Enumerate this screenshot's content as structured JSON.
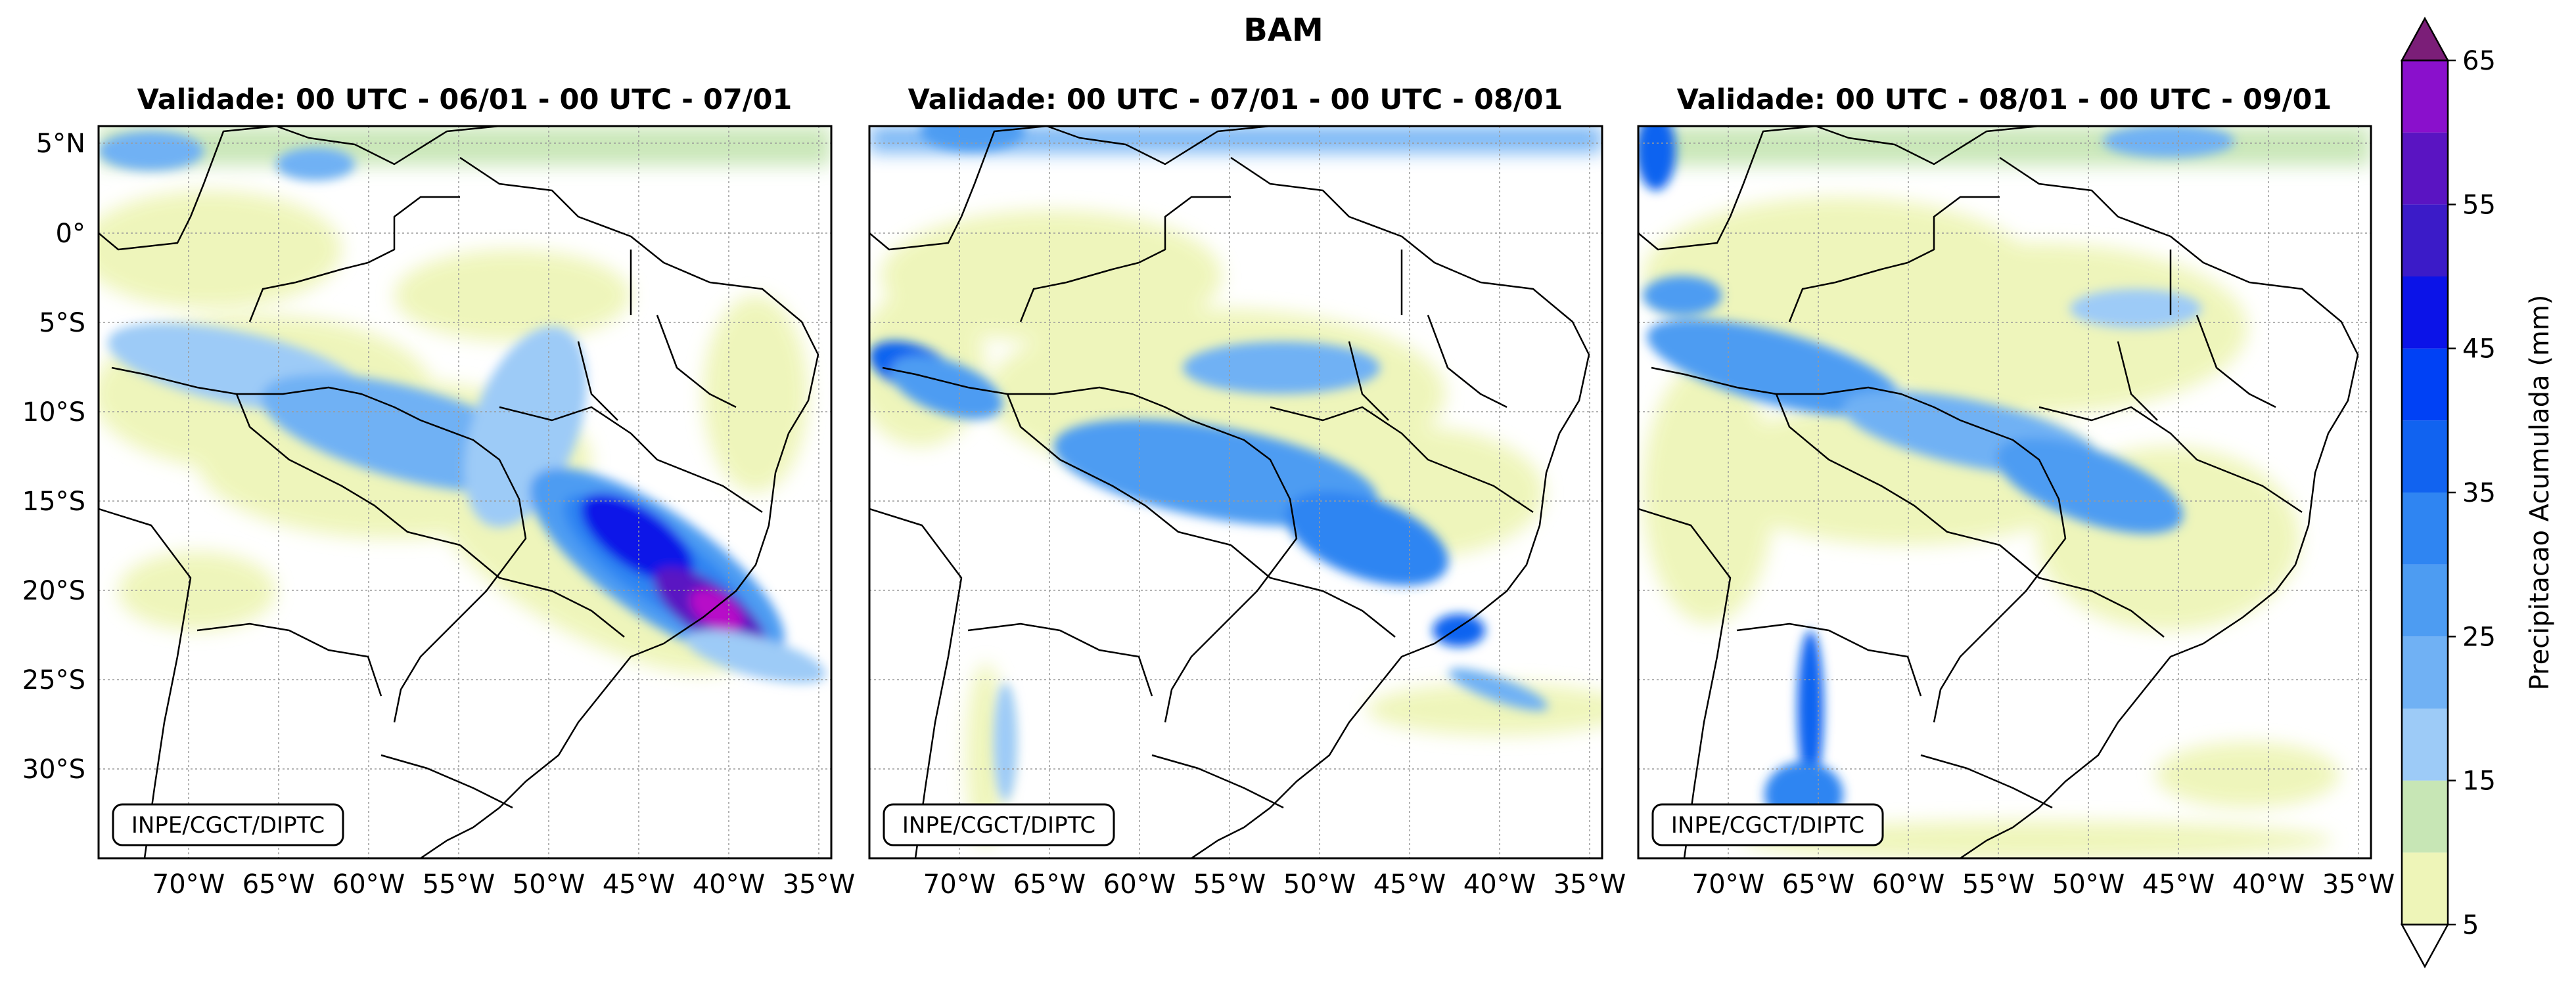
{
  "figure": {
    "suptitle": "BAM",
    "panels": [
      {
        "id": "p1",
        "title": "Validade: 00 UTC - 06/01 - 00 UTC - 07/01",
        "credit": "INPE/CGCT/DIPTC"
      },
      {
        "id": "p2",
        "title": "Validade: 00 UTC - 07/01 - 00 UTC - 08/01",
        "credit": "INPE/CGCT/DIPTC"
      },
      {
        "id": "p3",
        "title": "Validade: 00 UTC - 08/01 - 00 UTC - 09/01",
        "credit": "INPE/CGCT/DIPTC"
      }
    ],
    "lon_ticks": [
      "70°W",
      "65°W",
      "60°W",
      "55°W",
      "50°W",
      "45°W",
      "40°W",
      "35°W"
    ],
    "lat_ticks": [
      "5°N",
      "0°",
      "5°S",
      "10°S",
      "15°S",
      "20°S",
      "25°S",
      "30°S"
    ]
  },
  "colorbar": {
    "label": "Precipitacao Acumulada (mm)",
    "tick_labels": [
      "5",
      "15",
      "25",
      "35",
      "45",
      "55",
      "65"
    ],
    "levels": [
      5,
      10,
      15,
      20,
      25,
      30,
      35,
      40,
      45,
      50,
      55,
      60,
      65
    ],
    "colors": [
      "#eef5b8",
      "#c7e6b5",
      "#9dcbf7",
      "#70b1f4",
      "#4d9cf2",
      "#2f85f2",
      "#1163f0",
      "#0041f5",
      "#0b13e8",
      "#3b1bc8",
      "#5a14c2",
      "#8a10cc",
      "#b70ac8",
      "#d600cc"
    ],
    "extend_color": "#7b1e78"
  },
  "colors": {
    "frame": "#000000",
    "grid": "#9a9a9a",
    "border": "#000000"
  }
}
